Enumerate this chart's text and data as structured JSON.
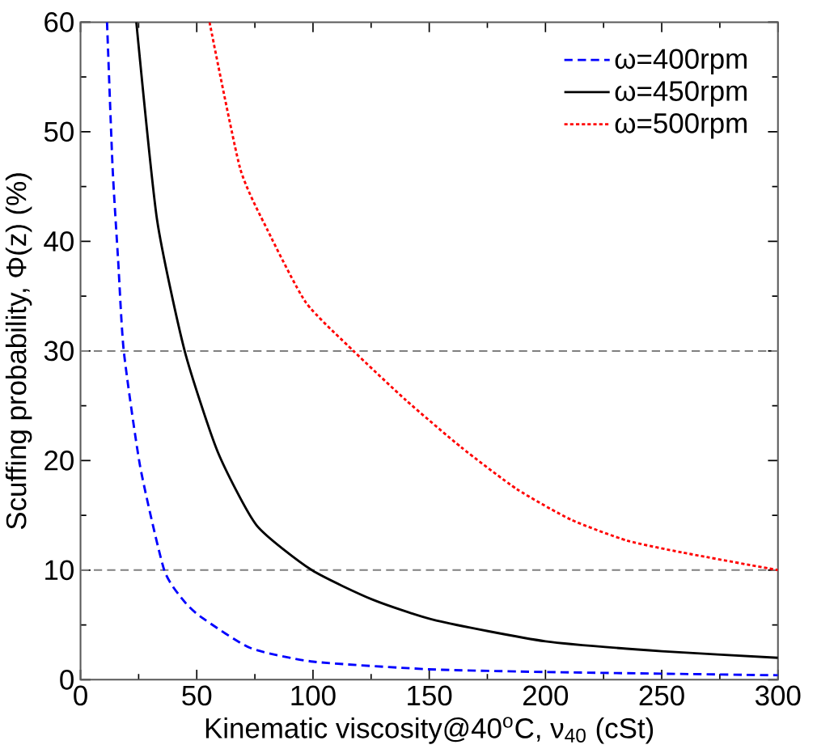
{
  "chart_data": {
    "type": "line",
    "xlabel": "Kinematic viscosity@40$^{o}$C, ν$_{40}$ (cSt)",
    "ylabel": "Scuffing probability, Φ(z) (%)",
    "xlim": [
      0,
      300
    ],
    "ylim": [
      0,
      60
    ],
    "xticks": [
      0,
      50,
      100,
      150,
      200,
      250,
      300
    ],
    "yticks": [
      0,
      10,
      20,
      30,
      40,
      50,
      60
    ],
    "legend": "top right",
    "grid": false,
    "series": [
      {
        "name": "ω=400rpm",
        "color": "#0000ff",
        "line_style": "dashed",
        "x": [
          11.4,
          13.8,
          16.2,
          18.6,
          25.7,
          36,
          44.8,
          52,
          73,
          100,
          150,
          200,
          250,
          300
        ],
        "values": [
          60,
          46.7,
          38.2,
          30,
          19.4,
          10,
          7.1,
          5.7,
          2.9,
          1.65,
          0.95,
          0.7,
          0.55,
          0.4
        ]
      },
      {
        "name": "ω=450rpm",
        "color": "#000000",
        "line_style": "solid",
        "x": [
          24,
          32.9,
          44.8,
          59,
          75.7,
          99.5,
          125.7,
          153,
          200,
          250,
          300
        ],
        "values": [
          60,
          42,
          30,
          20.8,
          14.1,
          10,
          7.3,
          5.4,
          3.5,
          2.6,
          2.0
        ]
      },
      {
        "name": "ω=500rpm",
        "color": "#ff0000",
        "line_style": "dotted",
        "x": [
          55.5,
          68.6,
          80.5,
          97,
          117.4,
          140,
          163.8,
          187.6,
          211,
          235,
          259,
          300
        ],
        "values": [
          60,
          46.7,
          41,
          34.4,
          30,
          25.5,
          21.2,
          17.4,
          14.6,
          12.7,
          11.6,
          10
        ]
      }
    ],
    "ref_lines": [
      {
        "axis": "y",
        "value": 30,
        "color": "#808080",
        "line_style": "dashed"
      },
      {
        "axis": "y",
        "value": 10,
        "color": "#808080",
        "line_style": "dashed"
      }
    ]
  }
}
